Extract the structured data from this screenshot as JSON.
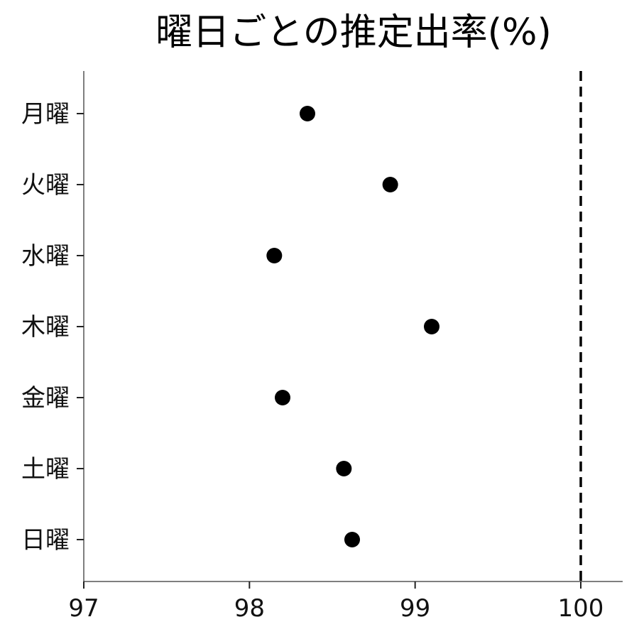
{
  "chart_data": {
    "type": "scatter",
    "title": "曜日ごとの推定出率(%)",
    "xlabel": "",
    "ylabel": "",
    "categories": [
      "月曜",
      "火曜",
      "水曜",
      "木曜",
      "金曜",
      "土曜",
      "日曜"
    ],
    "values": [
      98.35,
      98.85,
      98.15,
      99.1,
      98.2,
      98.57,
      98.62
    ],
    "xlim": [
      97,
      100.25
    ],
    "xticks": [
      "97",
      "98",
      "99",
      "100"
    ],
    "reference_line": {
      "x": 100,
      "style": "dashed",
      "color": "#000000"
    },
    "marker_color": "#000000",
    "grid": false,
    "legend": "none"
  }
}
